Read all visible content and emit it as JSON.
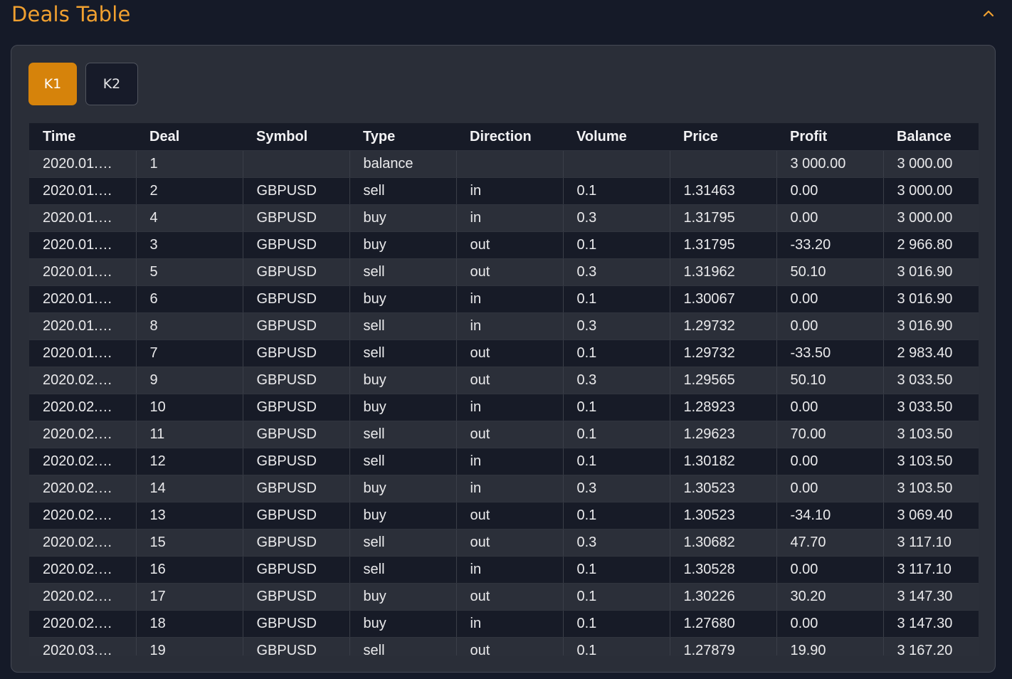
{
  "header": {
    "title": "Deals Table",
    "collapse_icon": "chevron-up-icon",
    "accent_color": "#f0a030"
  },
  "tabs": [
    {
      "label": "K1",
      "active": true
    },
    {
      "label": "K2",
      "active": false
    }
  ],
  "table": {
    "columns": [
      "Time",
      "Deal",
      "Symbol",
      "Type",
      "Direction",
      "Volume",
      "Price",
      "Profit",
      "Balance"
    ],
    "rows": [
      [
        "2020.01.…",
        "1",
        "",
        "balance",
        "",
        "",
        "",
        "3 000.00",
        "3 000.00"
      ],
      [
        "2020.01.…",
        "2",
        "GBPUSD",
        "sell",
        "in",
        "0.1",
        "1.31463",
        "0.00",
        "3 000.00"
      ],
      [
        "2020.01.…",
        "4",
        "GBPUSD",
        "buy",
        "in",
        "0.3",
        "1.31795",
        "0.00",
        "3 000.00"
      ],
      [
        "2020.01.…",
        "3",
        "GBPUSD",
        "buy",
        "out",
        "0.1",
        "1.31795",
        "-33.20",
        "2 966.80"
      ],
      [
        "2020.01.…",
        "5",
        "GBPUSD",
        "sell",
        "out",
        "0.3",
        "1.31962",
        "50.10",
        "3 016.90"
      ],
      [
        "2020.01.…",
        "6",
        "GBPUSD",
        "buy",
        "in",
        "0.1",
        "1.30067",
        "0.00",
        "3 016.90"
      ],
      [
        "2020.01.…",
        "8",
        "GBPUSD",
        "sell",
        "in",
        "0.3",
        "1.29732",
        "0.00",
        "3 016.90"
      ],
      [
        "2020.01.…",
        "7",
        "GBPUSD",
        "sell",
        "out",
        "0.1",
        "1.29732",
        "-33.50",
        "2 983.40"
      ],
      [
        "2020.02.…",
        "9",
        "GBPUSD",
        "buy",
        "out",
        "0.3",
        "1.29565",
        "50.10",
        "3 033.50"
      ],
      [
        "2020.02.…",
        "10",
        "GBPUSD",
        "buy",
        "in",
        "0.1",
        "1.28923",
        "0.00",
        "3 033.50"
      ],
      [
        "2020.02.…",
        "11",
        "GBPUSD",
        "sell",
        "out",
        "0.1",
        "1.29623",
        "70.00",
        "3 103.50"
      ],
      [
        "2020.02.…",
        "12",
        "GBPUSD",
        "sell",
        "in",
        "0.1",
        "1.30182",
        "0.00",
        "3 103.50"
      ],
      [
        "2020.02.…",
        "14",
        "GBPUSD",
        "buy",
        "in",
        "0.3",
        "1.30523",
        "0.00",
        "3 103.50"
      ],
      [
        "2020.02.…",
        "13",
        "GBPUSD",
        "buy",
        "out",
        "0.1",
        "1.30523",
        "-34.10",
        "3 069.40"
      ],
      [
        "2020.02.…",
        "15",
        "GBPUSD",
        "sell",
        "out",
        "0.3",
        "1.30682",
        "47.70",
        "3 117.10"
      ],
      [
        "2020.02.…",
        "16",
        "GBPUSD",
        "sell",
        "in",
        "0.1",
        "1.30528",
        "0.00",
        "3 117.10"
      ],
      [
        "2020.02.…",
        "17",
        "GBPUSD",
        "buy",
        "out",
        "0.1",
        "1.30226",
        "30.20",
        "3 147.30"
      ],
      [
        "2020.02.…",
        "18",
        "GBPUSD",
        "buy",
        "in",
        "0.1",
        "1.27680",
        "0.00",
        "3 147.30"
      ],
      [
        "2020.03.…",
        "19",
        "GBPUSD",
        "sell",
        "out",
        "0.1",
        "1.27879",
        "19.90",
        "3 167.20"
      ]
    ]
  }
}
